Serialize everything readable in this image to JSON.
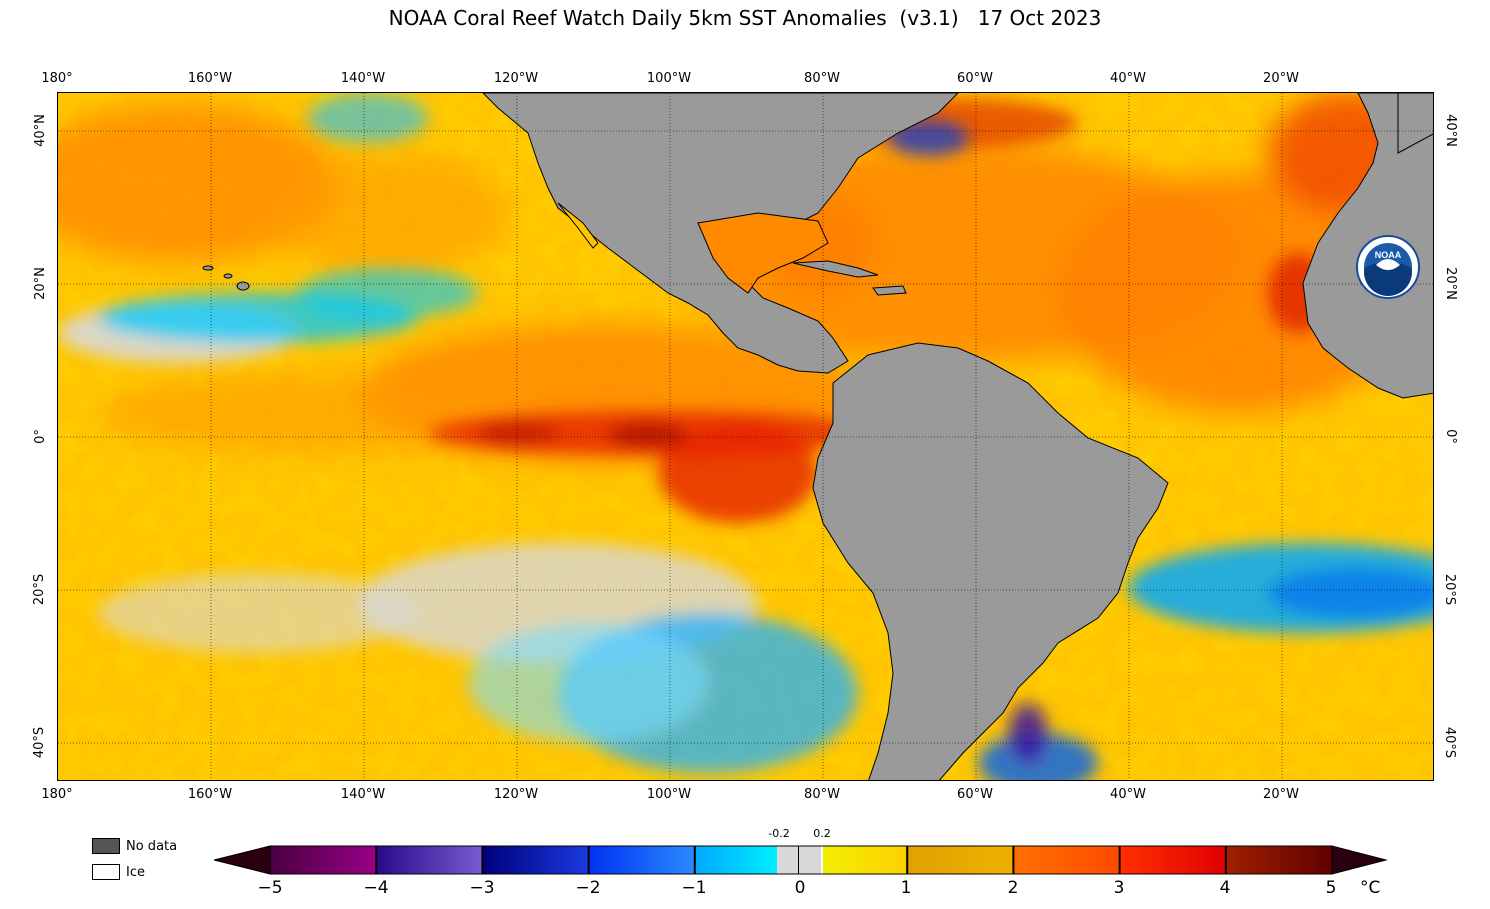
{
  "title": "NOAA Coral Reef Watch Daily 5km SST Anomalies  (v3.1)   17 Oct 2023",
  "logo_text": "NOAA",
  "lon_labels": [
    "180°",
    "160°W",
    "140°W",
    "120°W",
    "100°W",
    "80°W",
    "60°W",
    "40°W",
    "20°W"
  ],
  "lat_labels": [
    "40°N",
    "20°N",
    "0°",
    "20°S",
    "40°S"
  ],
  "legend": {
    "no_data": "No data",
    "ice": "Ice",
    "no_data_color": "#555555",
    "ice_color": "#ffffff"
  },
  "colorbar": {
    "ticks": [
      "−5",
      "−4",
      "−3",
      "−2",
      "−1",
      "0",
      "1",
      "2",
      "3",
      "4",
      "5"
    ],
    "small_ticks": [
      "-0.2",
      "0.2"
    ],
    "unit": "°C",
    "bands": [
      {
        "from": "#4a0040",
        "to": "#9a0088"
      },
      {
        "from": "#2a0a8a",
        "to": "#7a5ad0"
      },
      {
        "from": "#00007a",
        "to": "#1a3ae0"
      },
      {
        "from": "#0030f0",
        "to": "#2a8cff"
      },
      {
        "from": "#00a8ff",
        "to": "#00f0ff"
      },
      {
        "from": "#f0f000",
        "to": "#ffd000"
      },
      {
        "from": "#e0a000",
        "to": "#f0b000"
      },
      {
        "from": "#ff7000",
        "to": "#ff4a00"
      },
      {
        "from": "#ff3000",
        "to": "#e00000"
      },
      {
        "from": "#a02000",
        "to": "#600000"
      }
    ]
  },
  "colors": {
    "land": "#9a9a9a",
    "ocean_base": "#ffc800",
    "anomaly_warm": "#ff8a00",
    "anomaly_hot": "#e82000",
    "anomaly_cool": "#00c8ff",
    "no_data_gray": "#d8d8d8"
  }
}
